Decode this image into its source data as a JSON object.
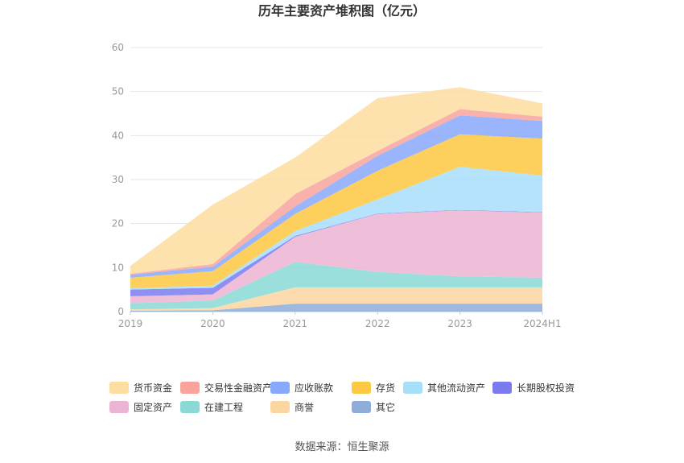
{
  "chart_data": {
    "type": "area",
    "stacked": true,
    "title": "历年主要资产堆积图（亿元）",
    "x": [
      "2019",
      "2020",
      "2021",
      "2022",
      "2023",
      "2024H1"
    ],
    "ylim": [
      0,
      60
    ],
    "yticks": [
      0,
      10,
      20,
      30,
      40,
      50,
      60
    ],
    "grid": true,
    "legend_position": "bottom",
    "source": "数据来源：恒生聚源",
    "series": [
      {
        "name": "其它",
        "color": "#8eadd8",
        "values": [
          0.2,
          0.3,
          1.8,
          1.8,
          1.8,
          1.8
        ]
      },
      {
        "name": "商誉",
        "color": "#fcd6a0",
        "values": [
          0.3,
          0.5,
          3.7,
          3.7,
          3.7,
          3.7
        ]
      },
      {
        "name": "在建工程",
        "color": "#8ad9d6",
        "values": [
          1.4,
          1.7,
          5.8,
          3.5,
          2.5,
          2.2
        ]
      },
      {
        "name": "固定资产",
        "color": "#ecb4d4",
        "values": [
          1.6,
          1.4,
          5.7,
          13.2,
          15.0,
          14.8
        ]
      },
      {
        "name": "长期股权投资",
        "color": "#7b7bef",
        "values": [
          1.5,
          1.5,
          0.2,
          0.1,
          0.1,
          0.1
        ]
      },
      {
        "name": "其他流动资产",
        "color": "#a7defa",
        "values": [
          0.3,
          0.5,
          1.1,
          3.2,
          9.8,
          8.3
        ]
      },
      {
        "name": "存货",
        "color": "#fdc842",
        "values": [
          2.4,
          3.3,
          3.9,
          6.5,
          7.4,
          8.4
        ]
      },
      {
        "name": "应收账款",
        "color": "#88a8fb",
        "values": [
          0.7,
          1.0,
          1.7,
          3.4,
          4.3,
          4.0
        ]
      },
      {
        "name": "交易性金融资产",
        "color": "#f8a39c",
        "values": [
          0.2,
          0.6,
          2.8,
          1.1,
          1.4,
          1.0
        ]
      },
      {
        "name": "货币资金",
        "color": "#fddda0",
        "values": [
          1.8,
          13.5,
          8.3,
          12.0,
          5.0,
          3.0
        ]
      }
    ],
    "legend_order": [
      "货币资金",
      "交易性金融资产",
      "应收账款",
      "存货",
      "其他流动资产",
      "长期股权投资",
      "固定资产",
      "在建工程",
      "商誉",
      "其它"
    ]
  }
}
